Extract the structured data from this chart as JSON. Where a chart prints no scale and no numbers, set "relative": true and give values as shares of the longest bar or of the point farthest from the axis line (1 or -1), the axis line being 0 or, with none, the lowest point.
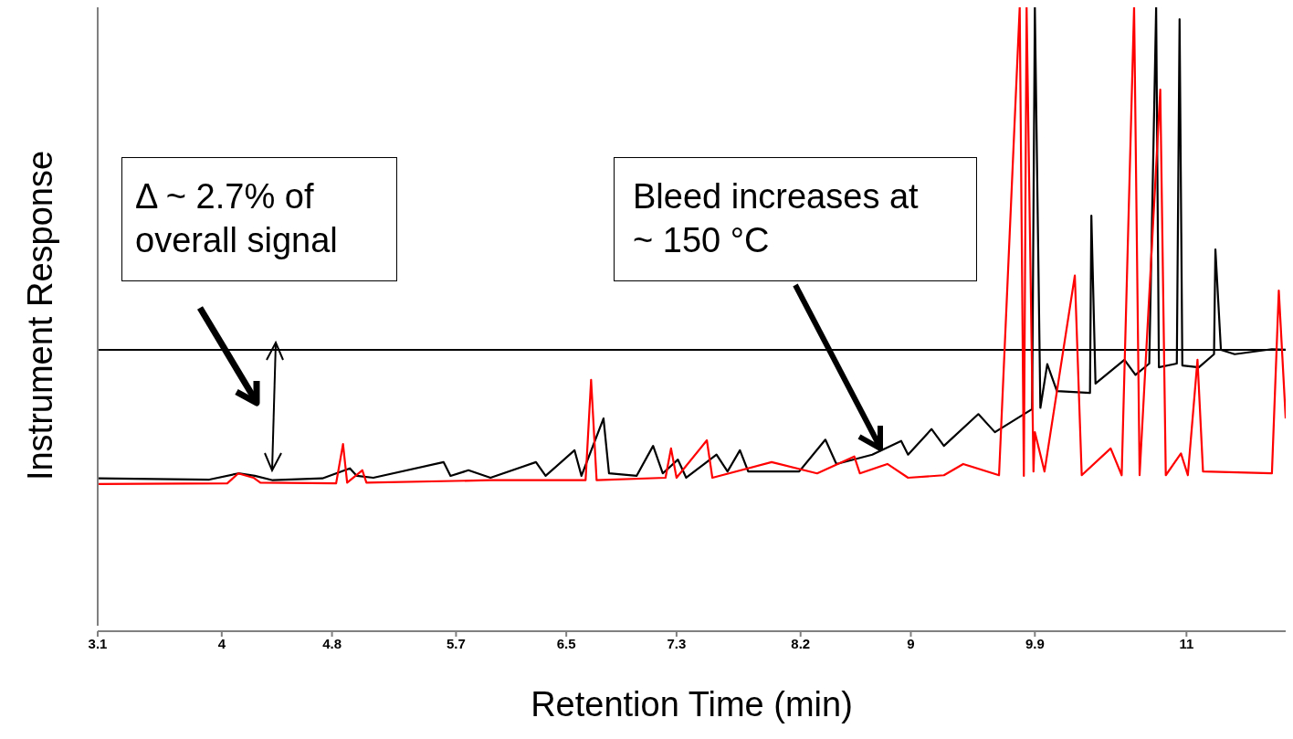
{
  "chart_data": {
    "type": "line",
    "relative": true,
    "xlabel": "Retention Time (min)",
    "ylabel": "Instrument Response",
    "xlim": [
      3.1,
      11.72
    ],
    "xticks": [
      3.1,
      4,
      4.8,
      5.7,
      6.5,
      7.3,
      8.2,
      9,
      9.9,
      11
    ],
    "series": [
      {
        "color": "#000000",
        "x": [
          3.1,
          3.91,
          4.12,
          4.24,
          4.37,
          4.73,
          4.93,
          4.98,
          5.1,
          5.61,
          5.66,
          5.79,
          5.95,
          6.28,
          6.35,
          6.56,
          6.61,
          6.77,
          6.81,
          7.01,
          7.13,
          7.2,
          7.31,
          7.37,
          7.59,
          7.67,
          7.76,
          7.82,
          8.19,
          8.38,
          8.46,
          8.72,
          8.93,
          8.98,
          9.15,
          9.24,
          9.49,
          9.61,
          9.77,
          9.88,
          9.9,
          9.94,
          9.99,
          10.06,
          10.3,
          10.31,
          10.34,
          10.55,
          10.63,
          10.73,
          10.78,
          10.8,
          10.93,
          10.95,
          10.97,
          11.09,
          11.2,
          11.21,
          11.25,
          11.35,
          11.62,
          11.72
        ],
        "values": [
          0.245,
          0.243,
          0.253,
          0.249,
          0.242,
          0.245,
          0.261,
          0.249,
          0.246,
          0.271,
          0.249,
          0.258,
          0.246,
          0.271,
          0.249,
          0.29,
          0.249,
          0.341,
          0.253,
          0.249,
          0.297,
          0.253,
          0.275,
          0.246,
          0.283,
          0.256,
          0.29,
          0.256,
          0.256,
          0.307,
          0.268,
          0.283,
          0.305,
          0.283,
          0.324,
          0.297,
          0.348,
          0.319,
          0.341,
          0.356,
          1,
          0.358,
          0.428,
          0.385,
          0.382,
          0.666,
          0.397,
          0.435,
          0.411,
          0.429,
          1,
          0.423,
          0.429,
          0.981,
          0.426,
          0.423,
          0.444,
          0.612,
          0.451,
          0.444,
          0.452,
          0.451
        ]
      },
      {
        "color": "#ff0000",
        "x": [
          3.1,
          4.04,
          4.12,
          4.23,
          4.28,
          4.83,
          4.88,
          4.91,
          5.02,
          5.05,
          5.95,
          6.64,
          6.68,
          6.72,
          7.22,
          7.26,
          7.3,
          7.52,
          7.56,
          7.99,
          8.32,
          8.59,
          8.63,
          8.83,
          8.98,
          9.24,
          9.38,
          9.64,
          9.79,
          9.82,
          9.84,
          9.89,
          9.9,
          9.97,
          10.19,
          10.24,
          10.45,
          10.53,
          10.62,
          10.66,
          10.81,
          10.85,
          10.96,
          11.01,
          11.08,
          11.12,
          11.62,
          11.67,
          11.72
        ],
        "values": [
          0.236,
          0.237,
          0.253,
          0.246,
          0.238,
          0.237,
          0.3,
          0.238,
          0.258,
          0.238,
          0.242,
          0.242,
          0.403,
          0.242,
          0.246,
          0.293,
          0.246,
          0.306,
          0.246,
          0.271,
          0.253,
          0.28,
          0.253,
          0.268,
          0.246,
          0.25,
          0.268,
          0.25,
          1,
          0.249,
          1,
          0.256,
          0.319,
          0.256,
          0.57,
          0.25,
          0.293,
          0.25,
          1,
          0.25,
          0.868,
          0.25,
          0.285,
          0.25,
          0.435,
          0.256,
          0.253,
          0.546,
          0.341
        ]
      }
    ],
    "ref_lines": [
      {
        "axis": "y",
        "value": 0.451,
        "color": "#000000"
      }
    ],
    "annotations": [
      "Δ ~ 2.7% of overall signal",
      "Bleed increases at ~ 150 °C"
    ]
  }
}
